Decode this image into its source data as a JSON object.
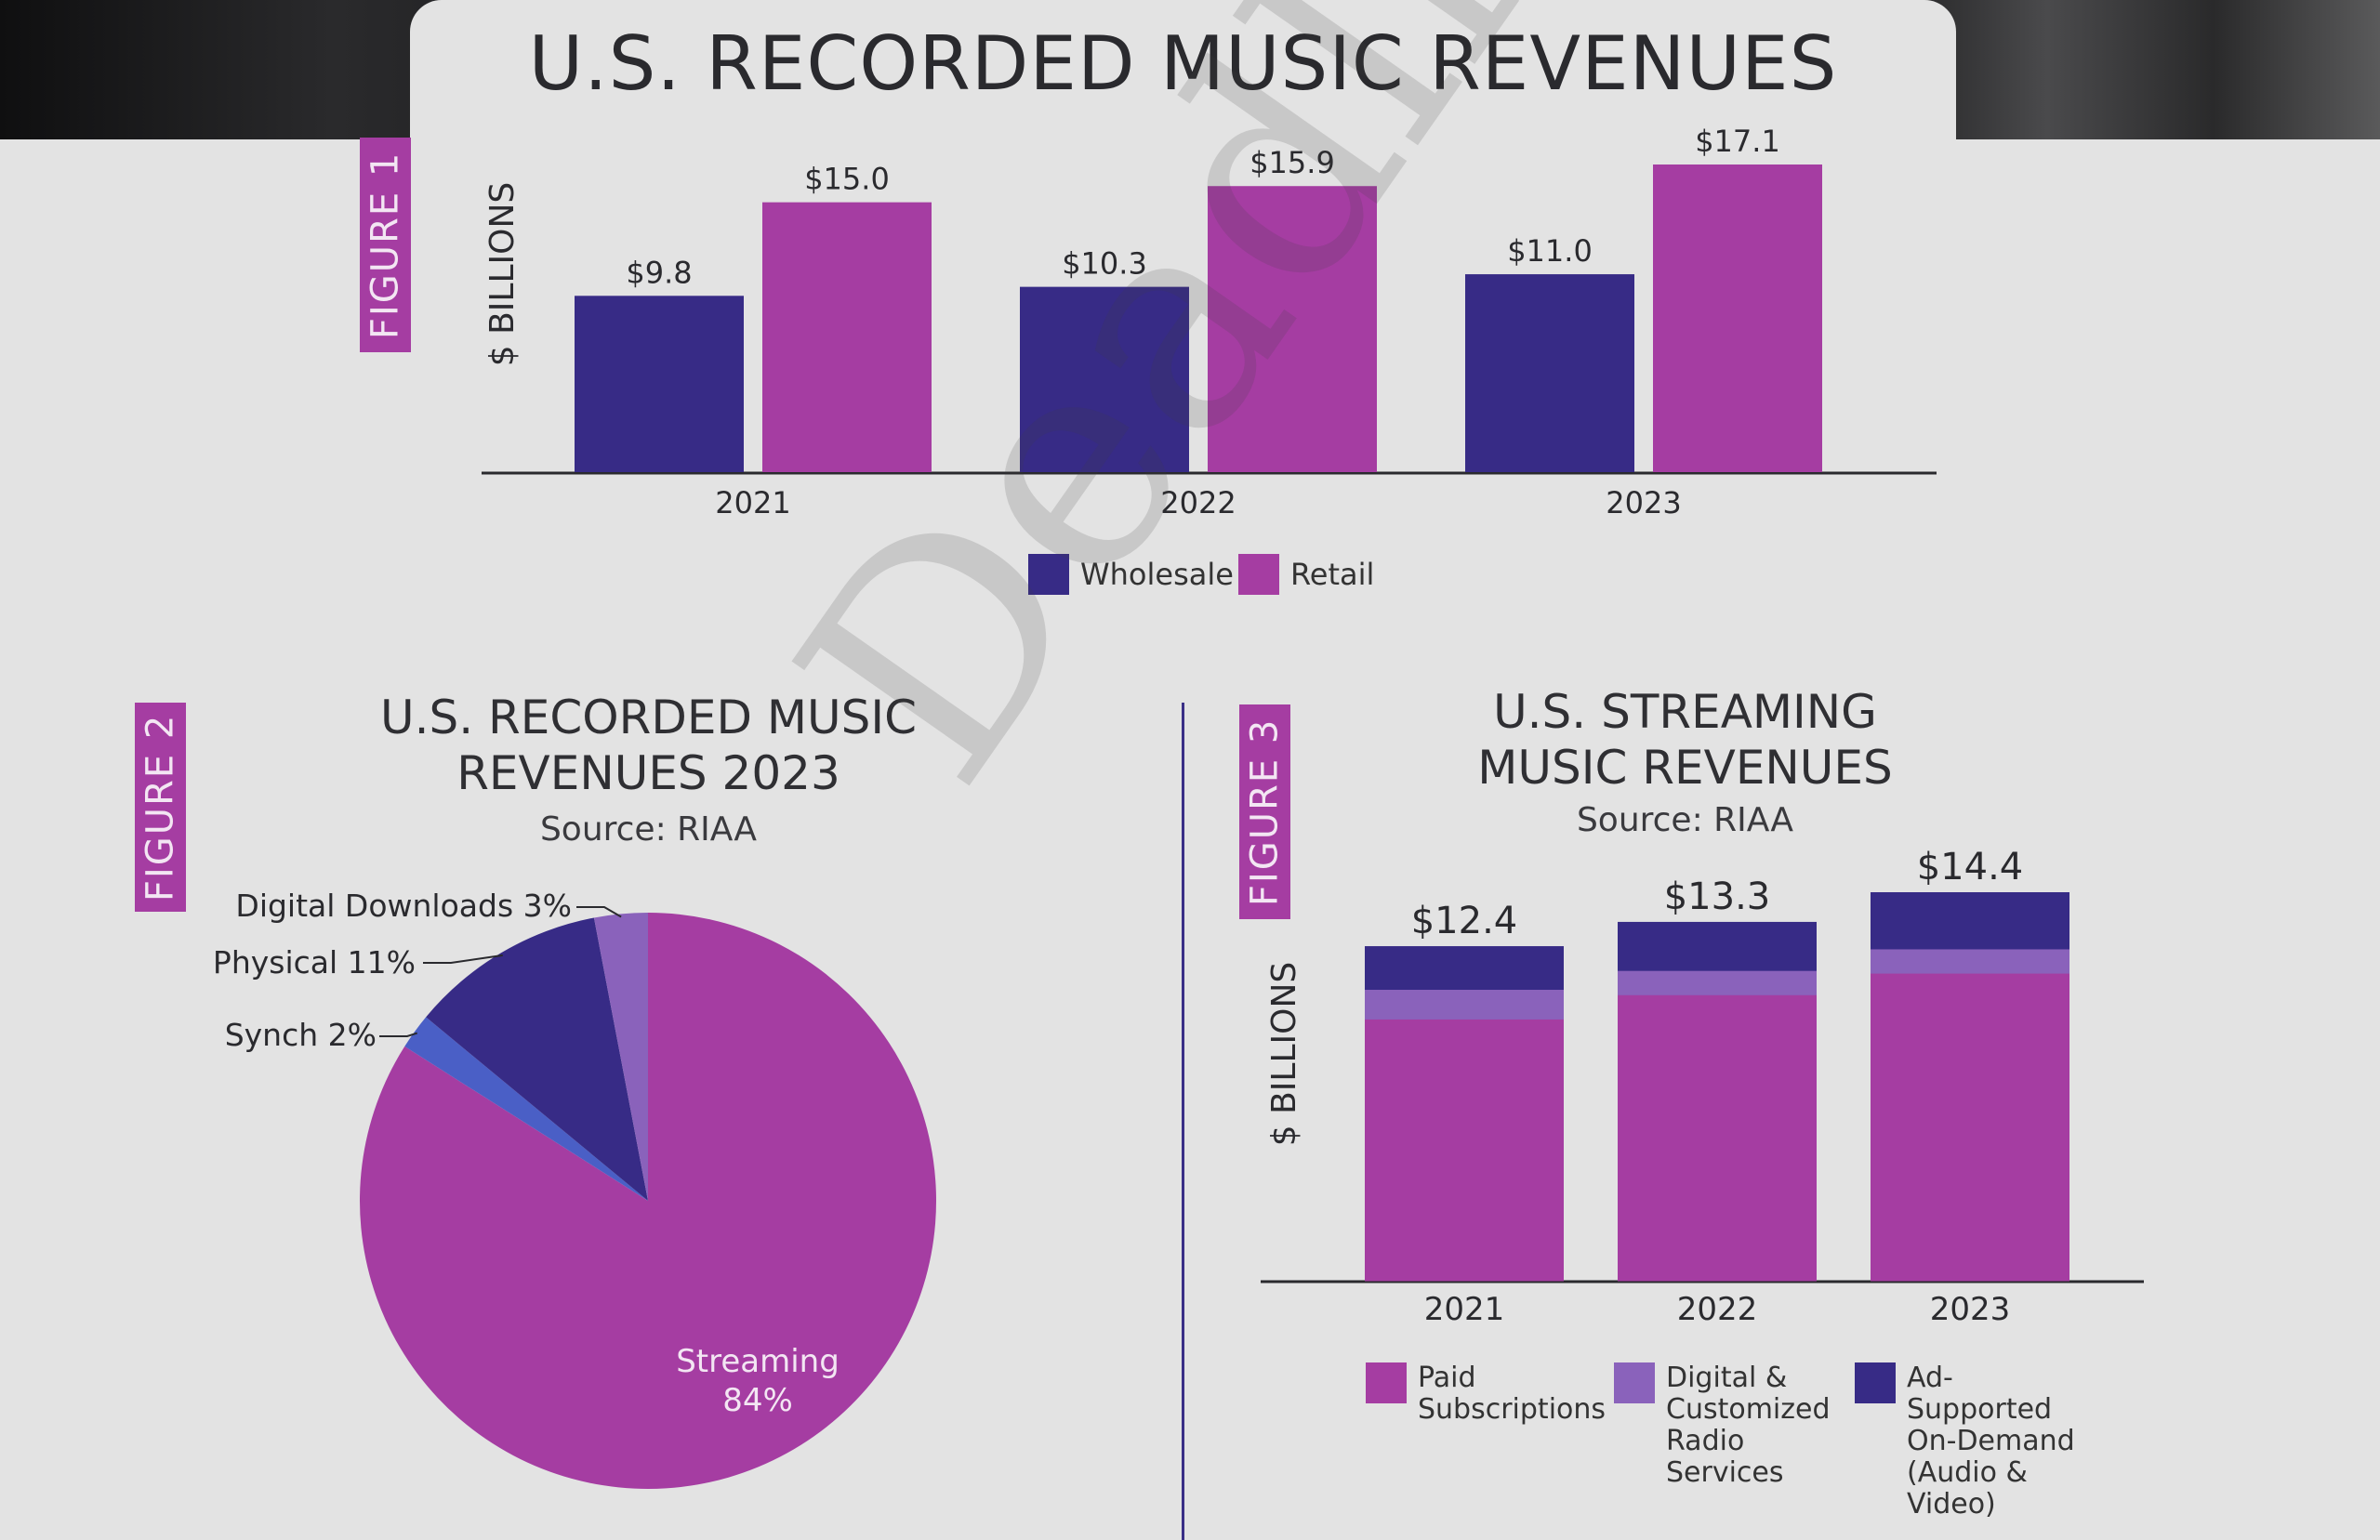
{
  "header": {
    "title": "U.S. RECORDED MUSIC REVENUES"
  },
  "figures": {
    "fig1": "FIGURE 1",
    "fig2": "FIGURE 2",
    "fig3": "FIGURE 3"
  },
  "figure2_title_line1": "U.S. RECORDED MUSIC",
  "figure2_title_line2": "REVENUES 2023",
  "figure2_source": "Source: RIAA",
  "figure3_title_line1": "U.S. STREAMING",
  "figure3_title_line2": "MUSIC REVENUES",
  "figure3_source": "Source: RIAA",
  "watermark": "Deadline",
  "colors": {
    "wholesale": "#372b86",
    "retail": "#a53da2",
    "paid": "#a53da2",
    "digital_radio": "#8a62bb",
    "ad_supported": "#372b86",
    "synch": "#4a5fc6",
    "physical": "#372b86",
    "downloads": "#8a62bb",
    "streaming": "#a53da2"
  },
  "chart_data": [
    {
      "type": "bar",
      "title": "U.S. RECORDED MUSIC REVENUES",
      "ylabel": "$ BILLIONS",
      "categories": [
        "2021",
        "2022",
        "2023"
      ],
      "series": [
        {
          "name": "Wholesale",
          "values": [
            9.8,
            10.3,
            11.0
          ],
          "labels": [
            "$9.8",
            "$10.3",
            "$11.0"
          ]
        },
        {
          "name": "Retail",
          "values": [
            15.0,
            15.9,
            17.1
          ],
          "labels": [
            "$15.0",
            "$15.9",
            "$17.1"
          ]
        }
      ],
      "ylim": [
        0,
        17.1
      ],
      "legend": "bottom-center"
    },
    {
      "type": "pie",
      "title": "U.S. RECORDED MUSIC REVENUES 2023",
      "slices": [
        {
          "name": "Streaming",
          "value": 84,
          "label": "Streaming",
          "pct_label": "84%"
        },
        {
          "name": "Synch",
          "value": 2,
          "label": "Synch 2%"
        },
        {
          "name": "Physical",
          "value": 11,
          "label": "Physical 11%"
        },
        {
          "name": "Digital Downloads",
          "value": 3,
          "label": "Digital Downloads 3%"
        }
      ]
    },
    {
      "type": "bar",
      "stacked": true,
      "title": "U.S. STREAMING MUSIC REVENUES",
      "ylabel": "$ BILLIONS",
      "categories": [
        "2021",
        "2022",
        "2023"
      ],
      "totals": [
        "$12.4",
        "$13.3",
        "$14.4"
      ],
      "series": [
        {
          "name": "Paid Subscriptions",
          "values": [
            9.7,
            10.6,
            11.4
          ]
        },
        {
          "name": "Digital & Customized Radio Services",
          "values": [
            1.1,
            0.9,
            0.9
          ]
        },
        {
          "name": "Ad-Supported On-Demand (Audio & Video)",
          "values": [
            1.6,
            1.8,
            2.1
          ]
        }
      ],
      "ylim": [
        0,
        14.4
      ],
      "legend": "bottom"
    }
  ]
}
